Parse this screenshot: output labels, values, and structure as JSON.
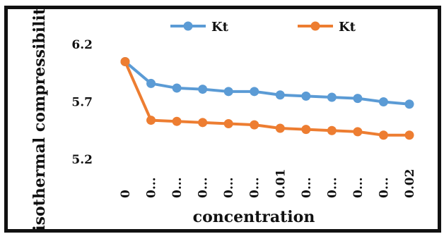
{
  "chart_data": {
    "type": "line",
    "title": "",
    "xlabel": "concentration",
    "ylabel": "isothermal compressibility",
    "ylim": [
      5.2,
      6.2
    ],
    "yticks": [
      "6.2",
      "5.7",
      "5.2"
    ],
    "ytick_values": [
      6.2,
      5.7,
      5.2
    ],
    "categories": [
      "0",
      "0...",
      "0...",
      "0...",
      "0...",
      "0...",
      "0.01",
      "0...",
      "0...",
      "0...",
      "0...",
      "0.02"
    ],
    "legend_position": "top",
    "grid": false,
    "series": [
      {
        "name": "Kt",
        "color": "#5b9bd5",
        "values": [
          6.05,
          5.86,
          5.82,
          5.81,
          5.79,
          5.79,
          5.76,
          5.75,
          5.74,
          5.73,
          5.7,
          5.68
        ]
      },
      {
        "name": "Kt",
        "color": "#ed7d31",
        "values": [
          6.05,
          5.54,
          5.53,
          5.52,
          5.51,
          5.5,
          5.47,
          5.46,
          5.45,
          5.44,
          5.41,
          5.41
        ]
      }
    ]
  }
}
